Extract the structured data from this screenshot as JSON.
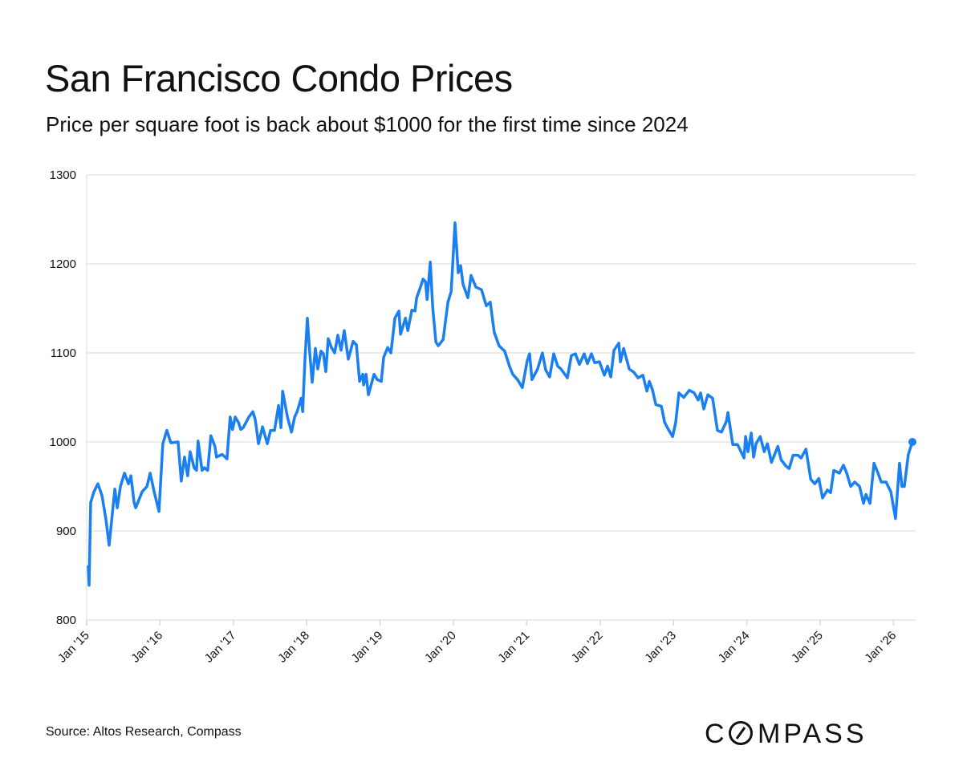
{
  "header": {
    "title": "San Francisco Condo Prices",
    "subtitle": "Price per square foot is back about $1000 for the first time since 2024"
  },
  "footer": {
    "source": "Source: Altos Research, Compass",
    "logo_text": "COMPASS"
  },
  "colors": {
    "line": "#1a7ff0",
    "grid": "#e6e6e6",
    "text": "#111111"
  },
  "chart_data": {
    "type": "line",
    "title": "San Francisco Condo Prices",
    "subtitle": "Price per square foot is back about $1000 for the first time since 2024",
    "xlabel": "",
    "ylabel": "",
    "ylim": [
      800,
      1300
    ],
    "xlim": [
      "2015-01-01",
      "2026-04-10"
    ],
    "yticks": [
      800,
      900,
      1000,
      1100,
      1200,
      1300
    ],
    "xticks": [
      {
        "date": "2015-01-01",
        "label": "Jan '15"
      },
      {
        "date": "2016-01-01",
        "label": "Jan '16"
      },
      {
        "date": "2017-01-01",
        "label": "Jan '17"
      },
      {
        "date": "2018-01-01",
        "label": "Jan '18"
      },
      {
        "date": "2019-01-01",
        "label": "Jan '19"
      },
      {
        "date": "2020-01-01",
        "label": "Jan '20"
      },
      {
        "date": "2021-01-01",
        "label": "Jan '21"
      },
      {
        "date": "2022-01-01",
        "label": "Jan '22"
      },
      {
        "date": "2023-01-01",
        "label": "Jan '23"
      },
      {
        "date": "2024-01-01",
        "label": "Jan '24"
      },
      {
        "date": "2025-01-01",
        "label": "Jan '25"
      },
      {
        "date": "2026-01-01",
        "label": "Jan '26"
      }
    ],
    "grid": "horizontal",
    "legend": "none",
    "end_marker": true,
    "series": [
      {
        "points": [
          [
            "2015-01-09",
            860
          ],
          [
            "2015-01-13",
            839
          ],
          [
            "2015-01-21",
            932
          ],
          [
            "2015-02-06",
            944
          ],
          [
            "2015-02-26",
            953
          ],
          [
            "2015-03-18",
            940
          ],
          [
            "2015-04-07",
            913
          ],
          [
            "2015-04-23",
            884
          ],
          [
            "2015-05-21",
            947
          ],
          [
            "2015-06-02",
            926
          ],
          [
            "2015-06-18",
            950
          ],
          [
            "2015-07-08",
            965
          ],
          [
            "2015-07-28",
            953
          ],
          [
            "2015-08-09",
            962
          ],
          [
            "2015-08-25",
            932
          ],
          [
            "2015-09-02",
            926
          ],
          [
            "2015-10-04",
            944
          ],
          [
            "2015-10-28",
            950
          ],
          [
            "2015-11-13",
            965
          ],
          [
            "2015-12-03",
            944
          ],
          [
            "2015-12-27",
            922
          ],
          [
            "2016-01-15",
            998
          ],
          [
            "2016-02-04",
            1013
          ],
          [
            "2016-02-24",
            999
          ],
          [
            "2016-03-31",
            1000
          ],
          [
            "2016-04-16",
            956
          ],
          [
            "2016-05-02",
            983
          ],
          [
            "2016-05-18",
            962
          ],
          [
            "2016-05-30",
            989
          ],
          [
            "2016-06-19",
            971
          ],
          [
            "2016-07-01",
            968
          ],
          [
            "2016-07-09",
            1001
          ],
          [
            "2016-07-29",
            968
          ],
          [
            "2016-08-10",
            971
          ],
          [
            "2016-08-26",
            968
          ],
          [
            "2016-09-11",
            1007
          ],
          [
            "2016-10-01",
            995
          ],
          [
            "2016-10-09",
            983
          ],
          [
            "2016-11-06",
            986
          ],
          [
            "2016-11-30",
            981
          ],
          [
            "2016-12-16",
            1028
          ],
          [
            "2016-12-28",
            1014
          ],
          [
            "2017-01-10",
            1028
          ],
          [
            "2017-01-26",
            1022
          ],
          [
            "2017-02-07",
            1014
          ],
          [
            "2017-02-19",
            1016
          ],
          [
            "2017-03-19",
            1028
          ],
          [
            "2017-04-08",
            1034
          ],
          [
            "2017-04-20",
            1025
          ],
          [
            "2017-05-06",
            998
          ],
          [
            "2017-05-26",
            1017
          ],
          [
            "2017-06-19",
            998
          ],
          [
            "2017-07-05",
            1013
          ],
          [
            "2017-07-25",
            1013
          ],
          [
            "2017-08-14",
            1041
          ],
          [
            "2017-08-26",
            1016
          ],
          [
            "2017-09-03",
            1057
          ],
          [
            "2017-09-27",
            1028
          ],
          [
            "2017-10-17",
            1011
          ],
          [
            "2017-11-02",
            1028
          ],
          [
            "2017-11-14",
            1034
          ],
          [
            "2017-12-04",
            1049
          ],
          [
            "2017-12-12",
            1034
          ],
          [
            "2017-12-23",
            1091
          ],
          [
            "2018-01-04",
            1139
          ],
          [
            "2018-01-16",
            1100
          ],
          [
            "2018-01-28",
            1067
          ],
          [
            "2018-02-13",
            1105
          ],
          [
            "2018-02-25",
            1082
          ],
          [
            "2018-03-13",
            1102
          ],
          [
            "2018-03-25",
            1099
          ],
          [
            "2018-04-06",
            1079
          ],
          [
            "2018-04-18",
            1116
          ],
          [
            "2018-05-04",
            1106
          ],
          [
            "2018-05-20",
            1100
          ],
          [
            "2018-06-05",
            1120
          ],
          [
            "2018-06-21",
            1103
          ],
          [
            "2018-07-07",
            1125
          ],
          [
            "2018-07-27",
            1093
          ],
          [
            "2018-08-20",
            1113
          ],
          [
            "2018-09-05",
            1109
          ],
          [
            "2018-09-21",
            1068
          ],
          [
            "2018-10-07",
            1076
          ],
          [
            "2018-10-11",
            1064
          ],
          [
            "2018-10-23",
            1076
          ],
          [
            "2018-11-04",
            1053
          ],
          [
            "2018-12-02",
            1076
          ],
          [
            "2018-12-18",
            1070
          ],
          [
            "2019-01-07",
            1068
          ],
          [
            "2019-01-19",
            1095
          ],
          [
            "2019-02-08",
            1106
          ],
          [
            "2019-02-24",
            1100
          ],
          [
            "2019-03-16",
            1139
          ],
          [
            "2019-04-05",
            1147
          ],
          [
            "2019-04-13",
            1121
          ],
          [
            "2019-05-07",
            1139
          ],
          [
            "2019-05-19",
            1125
          ],
          [
            "2019-06-08",
            1148
          ],
          [
            "2019-06-24",
            1147
          ],
          [
            "2019-07-02",
            1162
          ],
          [
            "2019-07-18",
            1172
          ],
          [
            "2019-08-03",
            1183
          ],
          [
            "2019-08-15",
            1180
          ],
          [
            "2019-08-23",
            1160
          ],
          [
            "2019-09-08",
            1202
          ],
          [
            "2019-09-20",
            1151
          ],
          [
            "2019-10-06",
            1112
          ],
          [
            "2019-10-18",
            1108
          ],
          [
            "2019-11-11",
            1115
          ],
          [
            "2019-12-05",
            1157
          ],
          [
            "2019-12-21",
            1169
          ],
          [
            "2020-01-09",
            1246
          ],
          [
            "2020-01-25",
            1190
          ],
          [
            "2020-02-06",
            1198
          ],
          [
            "2020-02-18",
            1177
          ],
          [
            "2020-03-13",
            1162
          ],
          [
            "2020-03-29",
            1187
          ],
          [
            "2020-04-22",
            1174
          ],
          [
            "2020-05-20",
            1171
          ],
          [
            "2020-06-13",
            1153
          ],
          [
            "2020-07-03",
            1157
          ],
          [
            "2020-07-23",
            1123
          ],
          [
            "2020-08-16",
            1108
          ],
          [
            "2020-09-13",
            1102
          ],
          [
            "2020-10-07",
            1085
          ],
          [
            "2020-10-23",
            1076
          ],
          [
            "2020-11-16",
            1070
          ],
          [
            "2020-12-10",
            1061
          ],
          [
            "2021-01-03",
            1091
          ],
          [
            "2021-01-15",
            1099
          ],
          [
            "2021-01-27",
            1070
          ],
          [
            "2021-02-24",
            1082
          ],
          [
            "2021-03-20",
            1100
          ],
          [
            "2021-04-05",
            1081
          ],
          [
            "2021-04-25",
            1073
          ],
          [
            "2021-05-15",
            1099
          ],
          [
            "2021-06-04",
            1085
          ],
          [
            "2021-06-20",
            1082
          ],
          [
            "2021-07-22",
            1072
          ],
          [
            "2021-08-11",
            1097
          ],
          [
            "2021-08-31",
            1099
          ],
          [
            "2021-09-20",
            1087
          ],
          [
            "2021-10-14",
            1099
          ],
          [
            "2021-10-30",
            1088
          ],
          [
            "2021-11-19",
            1099
          ],
          [
            "2021-12-05",
            1089
          ],
          [
            "2021-12-29",
            1090
          ],
          [
            "2022-01-22",
            1075
          ],
          [
            "2022-02-07",
            1085
          ],
          [
            "2022-02-23",
            1073
          ],
          [
            "2022-03-11",
            1103
          ],
          [
            "2022-04-04",
            1111
          ],
          [
            "2022-04-12",
            1090
          ],
          [
            "2022-04-28",
            1105
          ],
          [
            "2022-05-26",
            1082
          ],
          [
            "2022-06-19",
            1078
          ],
          [
            "2022-07-09",
            1072
          ],
          [
            "2022-08-02",
            1075
          ],
          [
            "2022-08-22",
            1057
          ],
          [
            "2022-09-03",
            1068
          ],
          [
            "2022-09-19",
            1058
          ],
          [
            "2022-10-05",
            1042
          ],
          [
            "2022-11-02",
            1040
          ],
          [
            "2022-11-18",
            1022
          ],
          [
            "2022-12-04",
            1015
          ],
          [
            "2022-12-28",
            1006
          ],
          [
            "2023-01-12",
            1022
          ],
          [
            "2023-01-28",
            1055
          ],
          [
            "2023-02-21",
            1050
          ],
          [
            "2023-03-21",
            1058
          ],
          [
            "2023-04-14",
            1055
          ],
          [
            "2023-05-04",
            1047
          ],
          [
            "2023-05-16",
            1055
          ],
          [
            "2023-06-01",
            1037
          ],
          [
            "2023-06-21",
            1053
          ],
          [
            "2023-07-15",
            1049
          ],
          [
            "2023-08-08",
            1013
          ],
          [
            "2023-08-28",
            1011
          ],
          [
            "2023-09-21",
            1023
          ],
          [
            "2023-09-29",
            1033
          ],
          [
            "2023-10-23",
            997
          ],
          [
            "2023-11-16",
            997
          ],
          [
            "2023-12-18",
            982
          ],
          [
            "2023-12-26",
            1006
          ],
          [
            "2024-01-07",
            989
          ],
          [
            "2024-01-23",
            1010
          ],
          [
            "2024-02-04",
            983
          ],
          [
            "2024-02-16",
            998
          ],
          [
            "2024-03-08",
            1006
          ],
          [
            "2024-03-28",
            989
          ],
          [
            "2024-04-13",
            998
          ],
          [
            "2024-05-03",
            977
          ],
          [
            "2024-06-04",
            995
          ],
          [
            "2024-06-20",
            980
          ],
          [
            "2024-07-14",
            973
          ],
          [
            "2024-07-30",
            970
          ],
          [
            "2024-08-19",
            985
          ],
          [
            "2024-09-12",
            985
          ],
          [
            "2024-09-28",
            982
          ],
          [
            "2024-10-22",
            992
          ],
          [
            "2024-11-15",
            958
          ],
          [
            "2024-12-05",
            953
          ],
          [
            "2024-12-25",
            959
          ],
          [
            "2025-01-13",
            937
          ],
          [
            "2025-02-06",
            946
          ],
          [
            "2025-02-22",
            943
          ],
          [
            "2025-03-10",
            968
          ],
          [
            "2025-04-07",
            965
          ],
          [
            "2025-04-27",
            974
          ],
          [
            "2025-05-13",
            965
          ],
          [
            "2025-06-02",
            950
          ],
          [
            "2025-06-22",
            955
          ],
          [
            "2025-07-16",
            950
          ],
          [
            "2025-08-05",
            931
          ],
          [
            "2025-08-17",
            941
          ],
          [
            "2025-09-06",
            931
          ],
          [
            "2025-09-26",
            976
          ],
          [
            "2025-10-16",
            965
          ],
          [
            "2025-11-01",
            955
          ],
          [
            "2025-11-25",
            955
          ],
          [
            "2025-12-19",
            944
          ],
          [
            "2026-01-11",
            914
          ],
          [
            "2026-01-31",
            976
          ],
          [
            "2026-02-12",
            950
          ],
          [
            "2026-02-24",
            950
          ],
          [
            "2026-03-16",
            986
          ],
          [
            "2026-04-05",
            1000
          ]
        ]
      }
    ]
  }
}
